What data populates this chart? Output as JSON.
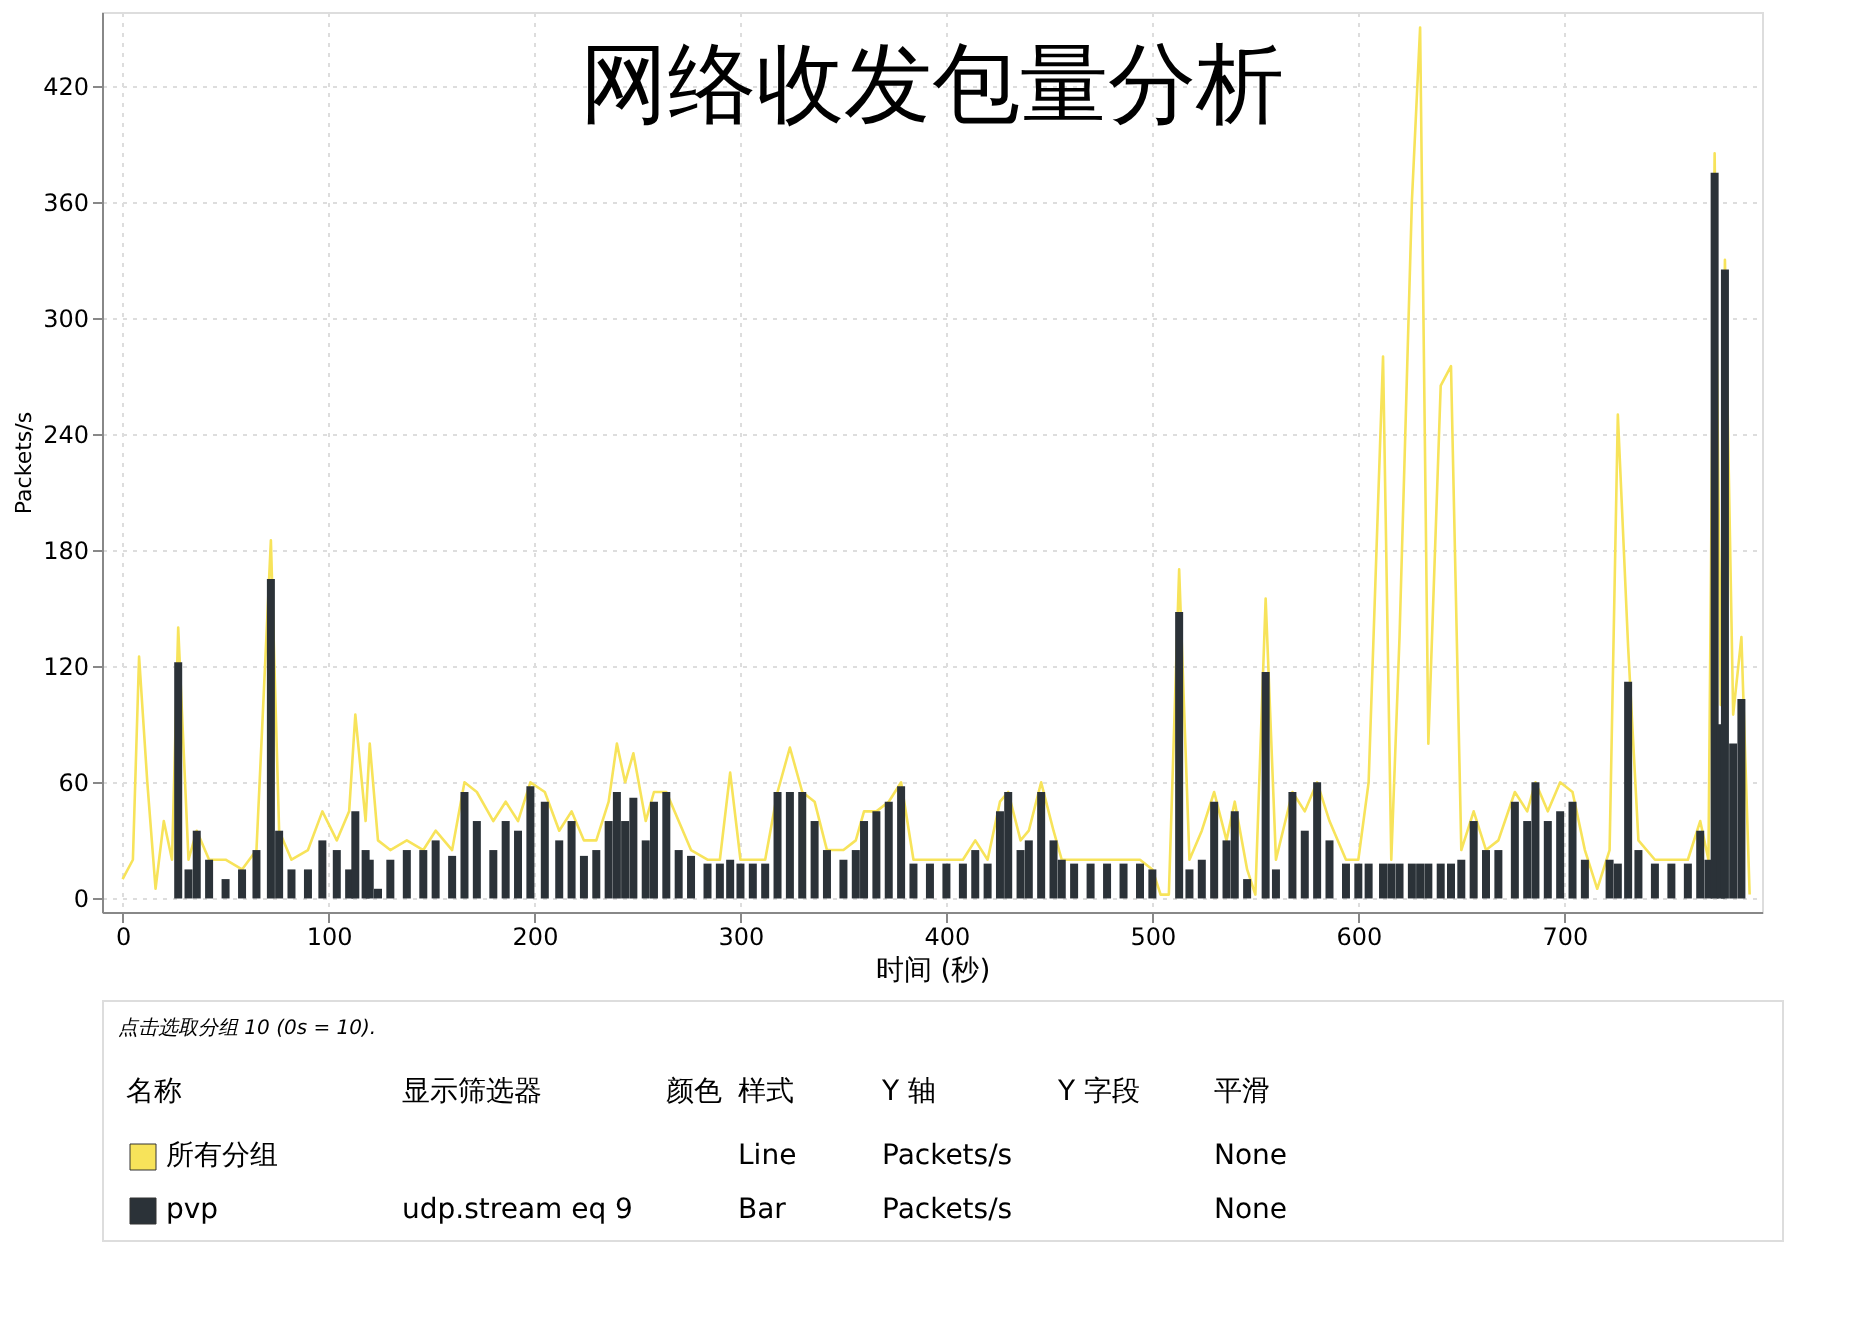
{
  "chart_data": {
    "type": "bar",
    "title": "网络收发包量分析",
    "xlabel": "时间 (秒)",
    "ylabel": "Packets/s",
    "x": [
      0,
      5,
      8,
      12,
      16,
      20,
      24,
      27,
      32,
      36,
      42,
      50,
      58,
      65,
      72,
      76,
      82,
      90,
      97,
      104,
      110,
      113,
      118,
      120,
      124,
      130,
      138,
      146,
      152,
      160,
      166,
      172,
      180,
      186,
      192,
      198,
      205,
      212,
      218,
      224,
      230,
      236,
      240,
      244,
      248,
      254,
      258,
      264,
      270,
      276,
      284,
      290,
      295,
      300,
      306,
      312,
      318,
      324,
      330,
      336,
      342,
      350,
      356,
      360,
      366,
      372,
      378,
      384,
      392,
      400,
      408,
      414,
      420,
      426,
      430,
      436,
      440,
      446,
      452,
      456,
      462,
      470,
      478,
      486,
      494,
      500,
      504,
      508,
      513,
      518,
      524,
      530,
      536,
      540,
      546,
      550,
      555,
      560,
      568,
      574,
      580,
      586,
      594,
      600,
      605,
      612,
      616,
      620,
      626,
      630,
      634,
      640,
      645,
      650,
      656,
      662,
      668,
      676,
      682,
      686,
      692,
      698,
      704,
      710,
      716,
      722,
      726,
      731,
      736,
      744,
      752,
      760,
      766,
      770,
      773,
      776,
      778,
      782,
      786,
      790
    ],
    "series": [
      {
        "name": "所有分组",
        "type": "line",
        "color": "#f7e35a",
        "values": [
          10,
          20,
          125,
          60,
          5,
          40,
          20,
          140,
          20,
          35,
          20,
          20,
          15,
          25,
          185,
          35,
          20,
          25,
          45,
          30,
          45,
          95,
          40,
          80,
          30,
          25,
          30,
          25,
          35,
          25,
          60,
          55,
          40,
          50,
          40,
          60,
          55,
          35,
          45,
          30,
          30,
          50,
          80,
          60,
          75,
          40,
          55,
          55,
          40,
          25,
          20,
          20,
          65,
          20,
          20,
          20,
          55,
          78,
          55,
          50,
          25,
          25,
          30,
          45,
          45,
          50,
          60,
          20,
          20,
          20,
          20,
          30,
          20,
          50,
          55,
          30,
          35,
          60,
          35,
          20,
          20,
          20,
          20,
          20,
          20,
          15,
          2,
          2,
          170,
          20,
          35,
          55,
          30,
          50,
          15,
          2,
          155,
          20,
          55,
          45,
          60,
          40,
          20,
          20,
          60,
          280,
          20,
          135,
          360,
          450,
          80,
          265,
          275,
          25,
          45,
          25,
          30,
          55,
          45,
          60,
          45,
          60,
          55,
          25,
          5,
          25,
          250,
          130,
          30,
          20,
          20,
          20,
          40,
          20,
          385,
          100,
          330,
          95,
          135,
          2
        ]
      },
      {
        "name": "pvp",
        "color": "#2b3238",
        "values": [
          0,
          0,
          0,
          0,
          0,
          0,
          0,
          122,
          15,
          35,
          20,
          10,
          15,
          25,
          165,
          35,
          15,
          15,
          30,
          25,
          15,
          45,
          25,
          20,
          5,
          20,
          25,
          25,
          30,
          22,
          55,
          40,
          25,
          40,
          35,
          58,
          50,
          30,
          40,
          22,
          25,
          40,
          55,
          40,
          52,
          30,
          50,
          55,
          25,
          22,
          18,
          18,
          20,
          18,
          18,
          18,
          55,
          55,
          55,
          40,
          25,
          20,
          25,
          40,
          45,
          50,
          58,
          18,
          18,
          18,
          18,
          25,
          18,
          45,
          55,
          25,
          30,
          55,
          30,
          20,
          18,
          18,
          18,
          18,
          18,
          15,
          0,
          0,
          148,
          15,
          20,
          50,
          30,
          45,
          10,
          0,
          117,
          15,
          55,
          35,
          60,
          30,
          18,
          18,
          18,
          18,
          18,
          18,
          18,
          18,
          18,
          18,
          18,
          20,
          40,
          25,
          25,
          50,
          40,
          60,
          40,
          45,
          50,
          20,
          0,
          20,
          18,
          112,
          25,
          18,
          18,
          18,
          35,
          20,
          375,
          90,
          325,
          80,
          103,
          0
        ]
      }
    ],
    "xlim": [
      -10,
      796
    ],
    "ylim": [
      -7,
      458
    ],
    "xticks": [
      0,
      100,
      200,
      300,
      400,
      500,
      600,
      700
    ],
    "yticks": [
      0,
      60,
      120,
      180,
      240,
      300,
      360,
      420
    ],
    "grid": true,
    "legend": "bottom",
    "annotations": [
      "点击选取分组 10 (0s = 10).",
      "名称",
      "显示筛选器",
      "颜色",
      "样式",
      "Y 轴",
      "Y 字段",
      "平滑",
      "Line",
      "Packets/s",
      "None",
      "udp.stream eq 9",
      "Bar",
      "Packets/s",
      "None"
    ]
  }
}
